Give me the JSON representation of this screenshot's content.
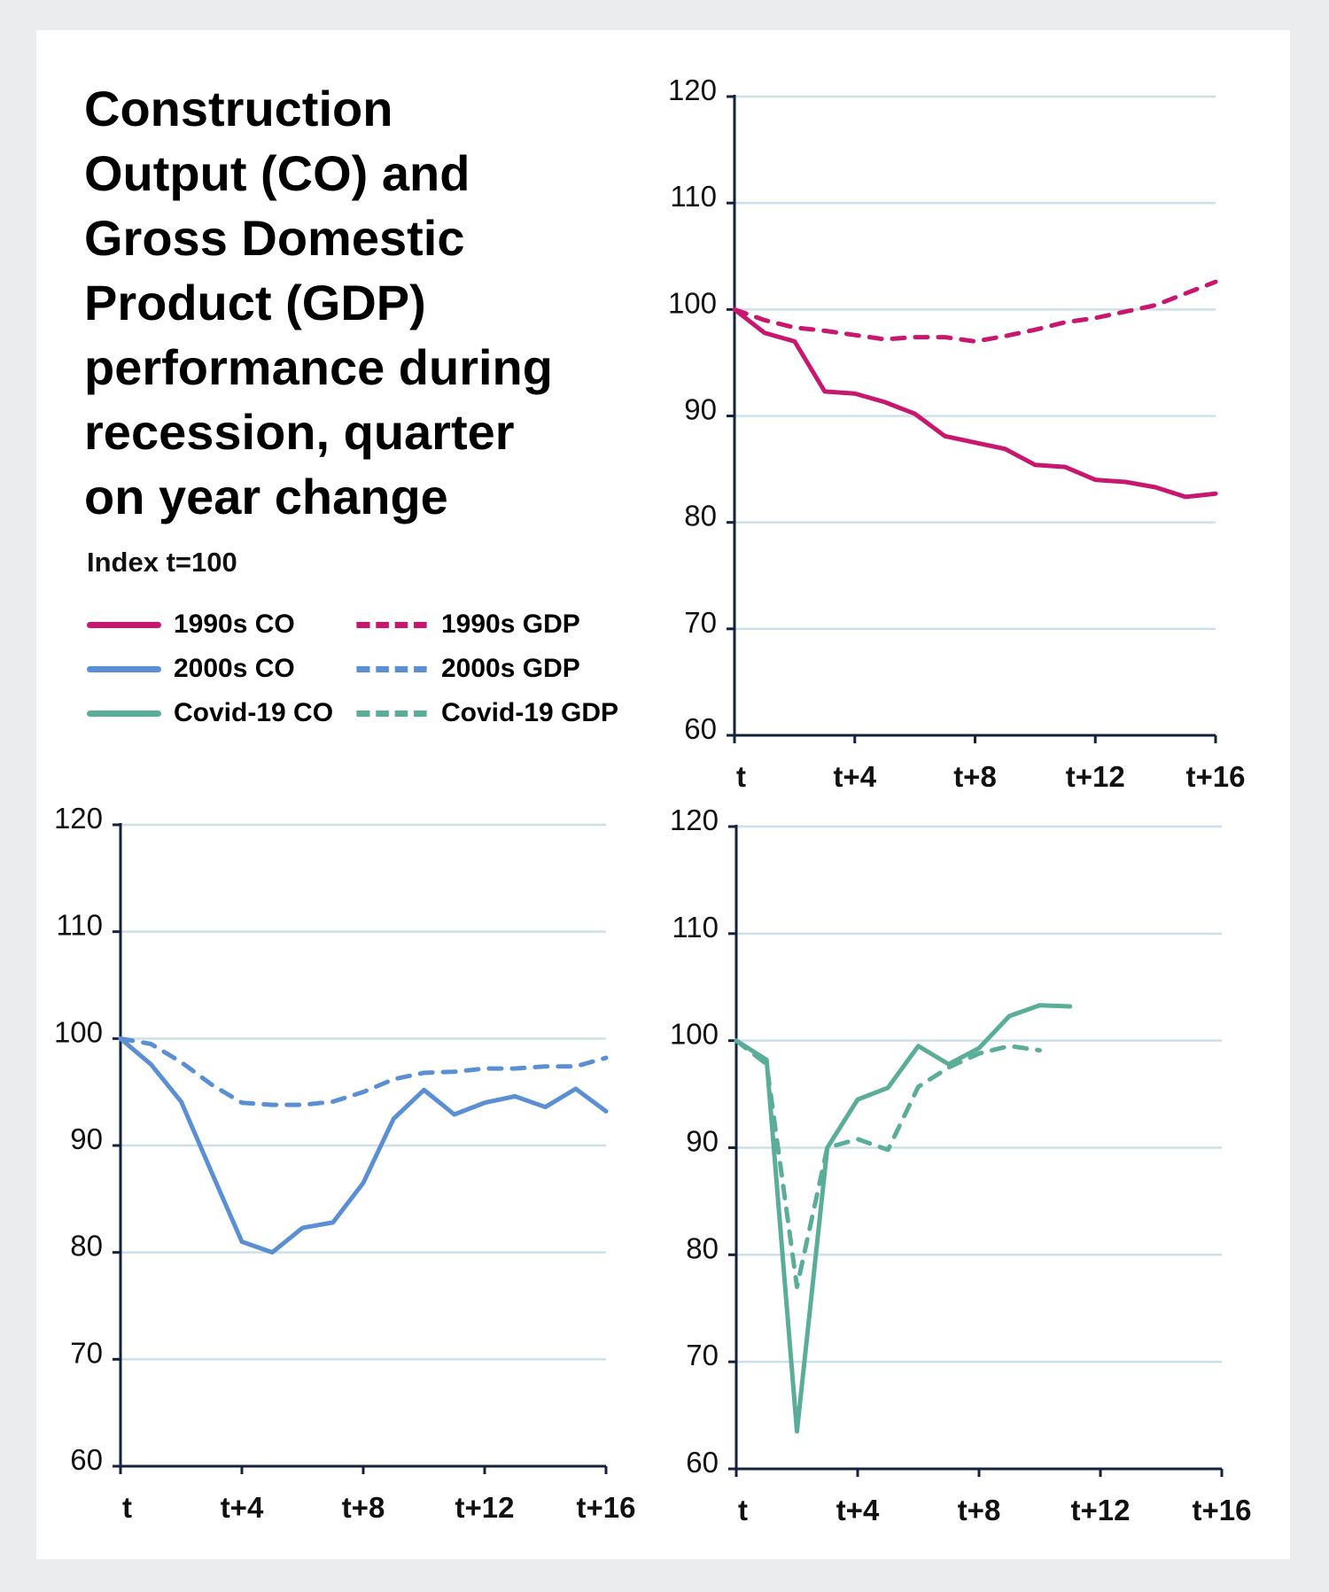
{
  "title_lines": [
    "Construction",
    "Output (CO) and",
    "Gross Domestic",
    "Product (GDP)",
    "performance during",
    "recession, quarter",
    "on year change"
  ],
  "subtitle": "Index t=100",
  "colors": {
    "1990s": "#c8176f",
    "2000s": "#5b8fd4",
    "covid": "#5aad98",
    "axis": "#14213d",
    "grid": "#cde0ea",
    "background": "#ebecee"
  },
  "legend": [
    {
      "label": "1990s CO",
      "color": "#c8176f",
      "dashed": false
    },
    {
      "label": "1990s GDP",
      "color": "#c8176f",
      "dashed": true
    },
    {
      "label": "2000s CO",
      "color": "#5b8fd4",
      "dashed": false
    },
    {
      "label": "2000s GDP",
      "color": "#5b8fd4",
      "dashed": true
    },
    {
      "label": "Covid-19 CO",
      "color": "#5aad98",
      "dashed": false
    },
    {
      "label": "Covid-19 GDP",
      "color": "#5aad98",
      "dashed": true
    }
  ],
  "chart_data": [
    {
      "type": "line",
      "x_ticks": [
        "t",
        "t+4",
        "t+8",
        "t+12",
        "t+16"
      ],
      "y_ticks": [
        60,
        70,
        80,
        90,
        100,
        110,
        120
      ],
      "ylim": [
        60,
        120
      ],
      "xlim": [
        0,
        16
      ],
      "grid": true,
      "series": [
        {
          "name": "1990s CO",
          "color": "#c8176f",
          "dashed": false,
          "values": [
            100,
            97.8,
            97,
            92.3,
            92.1,
            91.3,
            90.2,
            88.1,
            87.5,
            86.9,
            85.4,
            85.2,
            84,
            83.8,
            83.3,
            82.4,
            82.7
          ]
        },
        {
          "name": "1990s GDP",
          "color": "#c8176f",
          "dashed": true,
          "values": [
            100,
            99,
            98.3,
            98,
            97.6,
            97.2,
            97.4,
            97.4,
            97,
            97.5,
            98.1,
            98.8,
            99.2,
            99.8,
            100.4,
            101.5,
            102.6
          ]
        }
      ]
    },
    {
      "type": "line",
      "x_ticks": [
        "t",
        "t+4",
        "t+8",
        "t+12",
        "t+16"
      ],
      "y_ticks": [
        60,
        70,
        80,
        90,
        100,
        110,
        120
      ],
      "ylim": [
        60,
        120
      ],
      "xlim": [
        0,
        16
      ],
      "grid": true,
      "series": [
        {
          "name": "2000s CO",
          "color": "#5b8fd4",
          "dashed": false,
          "values": [
            100,
            97.6,
            94.1,
            87.5,
            81,
            80,
            82.3,
            82.8,
            86.5,
            92.5,
            95.2,
            92.9,
            94,
            94.6,
            93.6,
            95.3,
            93.2
          ]
        },
        {
          "name": "2000s GDP",
          "color": "#5b8fd4",
          "dashed": true,
          "values": [
            100,
            99.5,
            97.8,
            95.7,
            94,
            93.8,
            93.8,
            94.1,
            95,
            96.2,
            96.8,
            96.9,
            97.2,
            97.2,
            97.4,
            97.4,
            98.2
          ]
        }
      ]
    },
    {
      "type": "line",
      "x_ticks": [
        "t",
        "t+4",
        "t+8",
        "t+12",
        "t+16"
      ],
      "y_ticks": [
        60,
        70,
        80,
        90,
        100,
        110,
        120
      ],
      "ylim": [
        60,
        120
      ],
      "xlim": [
        0,
        16
      ],
      "grid": true,
      "series": [
        {
          "name": "Covid-19 CO",
          "color": "#5aad98",
          "dashed": false,
          "values": [
            100,
            98.2,
            63.5,
            90,
            94.5,
            95.6,
            99.5,
            97.8,
            99.3,
            102.3,
            103.3,
            103.2
          ]
        },
        {
          "name": "Covid-19 GDP",
          "color": "#5aad98",
          "dashed": true,
          "values": [
            100,
            97.8,
            77,
            90,
            90.8,
            89.8,
            95.7,
            97.5,
            98.8,
            99.5,
            99.1
          ]
        }
      ]
    }
  ]
}
